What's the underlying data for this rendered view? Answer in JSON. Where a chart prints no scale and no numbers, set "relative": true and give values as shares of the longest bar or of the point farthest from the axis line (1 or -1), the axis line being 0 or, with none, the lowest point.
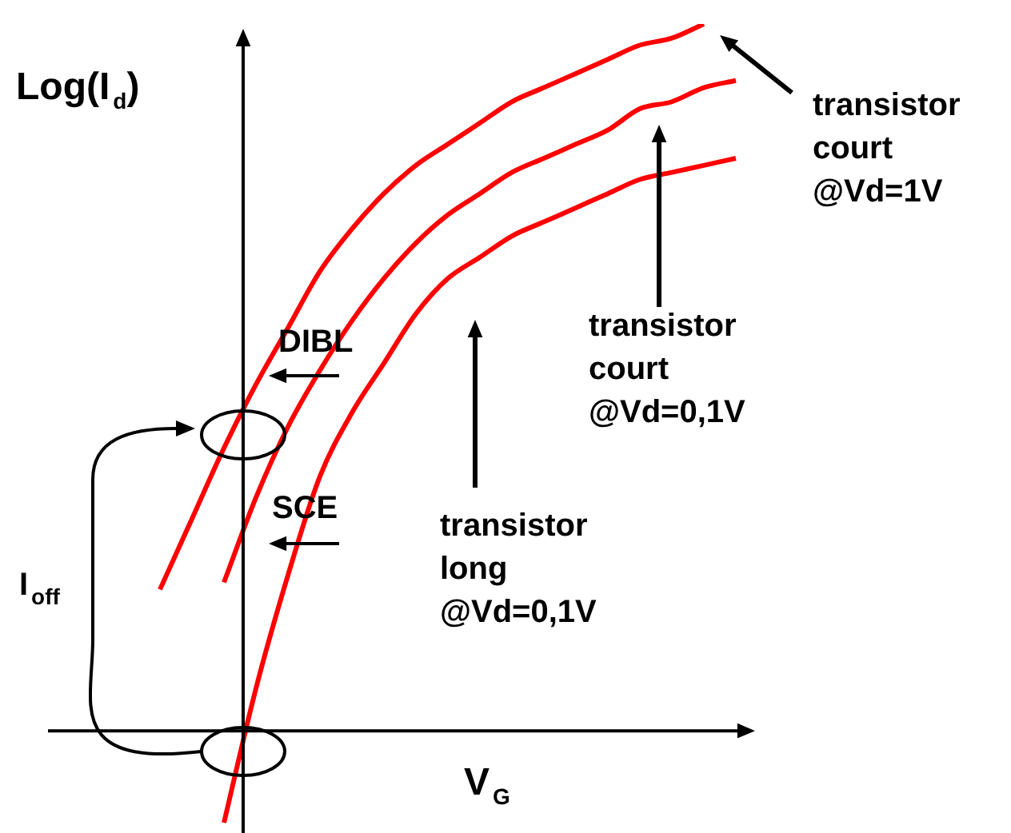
{
  "chart_data": {
    "type": "line",
    "relative": true,
    "xlabel": "V$_{G}$",
    "ylabel": "Log(I$_{d}$)",
    "categories": [
      null,
      null,
      null,
      null,
      null,
      null,
      null,
      null,
      null,
      null,
      null,
      null,
      null,
      null,
      null,
      null,
      null,
      null,
      null
    ],
    "series": [
      {
        "color": "#ff0000",
        "values": [
          0.2,
          0.3,
          0.4,
          0.49,
          0.57,
          0.65,
          0.71,
          0.76,
          0.8,
          0.83,
          0.86,
          0.89,
          0.91,
          0.93,
          0.95,
          0.97,
          0.98,
          1.0,
          null
        ]
      },
      {
        "color": "#ff0000",
        "values": [
          null,
          null,
          0.21,
          0.33,
          0.43,
          0.51,
          0.58,
          0.64,
          0.69,
          0.73,
          0.76,
          0.79,
          0.81,
          0.83,
          0.85,
          0.88,
          0.89,
          0.91,
          0.92
        ]
      },
      {
        "color": "#ff0000",
        "values": [
          null,
          null,
          -0.13,
          0.06,
          0.22,
          0.36,
          0.45,
          0.52,
          0.59,
          0.64,
          0.67,
          0.7,
          0.72,
          0.74,
          0.76,
          0.78,
          0.79,
          0.8,
          0.81
        ]
      }
    ],
    "annotations": [
      "transistor court @Vd=1V",
      "transistor court @Vd=0,1V",
      "transistor long @Vd=0,1V",
      "DIBL",
      "SCE",
      "I$_{off}$"
    ]
  }
}
